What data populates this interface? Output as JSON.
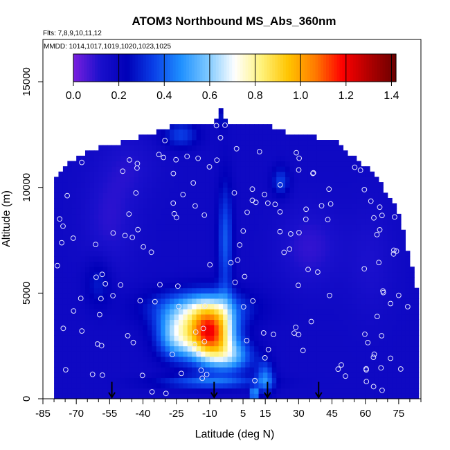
{
  "chart_data": {
    "type": "heatmap",
    "title": "ATOM3 Northbound MS_Abs_360nm",
    "subtitle_flights": "Flts: 7,8,9,10,11,12",
    "subtitle_dates": "MMDD: 1014,1017,1019,1020,1023,1025",
    "xlabel": "Latitude (deg N)",
    "ylabel": "Altitude (m)",
    "xlim": [
      -85,
      85
    ],
    "ylim": [
      0,
      17000
    ],
    "x_ticks": [
      -85,
      -70,
      -55,
      -40,
      -25,
      -10,
      5,
      15,
      30,
      45,
      60,
      75
    ],
    "x_minor_ticks": [
      -80,
      -75,
      -65,
      -60,
      -50,
      -45,
      -35,
      -30,
      -20,
      -15,
      -5,
      0,
      10,
      20,
      25,
      35,
      40,
      50,
      55,
      65,
      70,
      80,
      85
    ],
    "y_ticks": [
      0,
      5000,
      10000,
      15000
    ],
    "colorbar": {
      "min": 0.0,
      "max": 1.42,
      "tick_values": [
        0.0,
        0.2,
        0.4,
        0.6,
        0.8,
        1.0,
        1.2,
        1.4
      ],
      "tick_labels": [
        "0.0",
        "0.2",
        "0.4",
        "0.6",
        "0.8",
        "1.0",
        "1.2",
        "1.4"
      ],
      "colors": [
        "#7a1fdf",
        "#1a10cc",
        "#0000b8",
        "#0a40e8",
        "#1e90ff",
        "#7cc8ff",
        "#ffffff",
        "#fff27a",
        "#ffc400",
        "#ff7a00",
        "#ff0000",
        "#b00000",
        "#6a0000"
      ]
    },
    "arrow_latitudes": [
      -54,
      -8,
      16,
      39
    ],
    "grid": false,
    "legend_position": "top"
  }
}
